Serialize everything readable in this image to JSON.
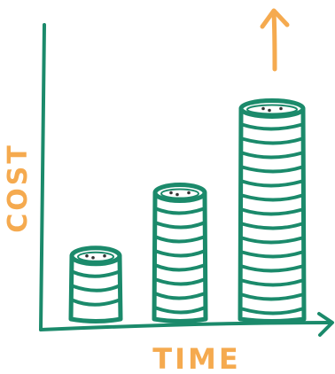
{
  "chart_data": {
    "type": "bar",
    "style": "hand-drawn coin stacks",
    "categories": [
      "",
      "",
      ""
    ],
    "values": [
      3,
      6,
      10
    ],
    "xlabel": "TIME",
    "ylabel": "COST",
    "ylim": [
      0,
      12
    ],
    "grid": false,
    "legend": "none",
    "annotation": "up-arrow-icon",
    "colors": {
      "stack": "#1b8a6b",
      "label": "#f5aa4f",
      "axis": "#1b8a6b",
      "arrow": "#f5aa4f",
      "background": "#ffffff"
    }
  }
}
